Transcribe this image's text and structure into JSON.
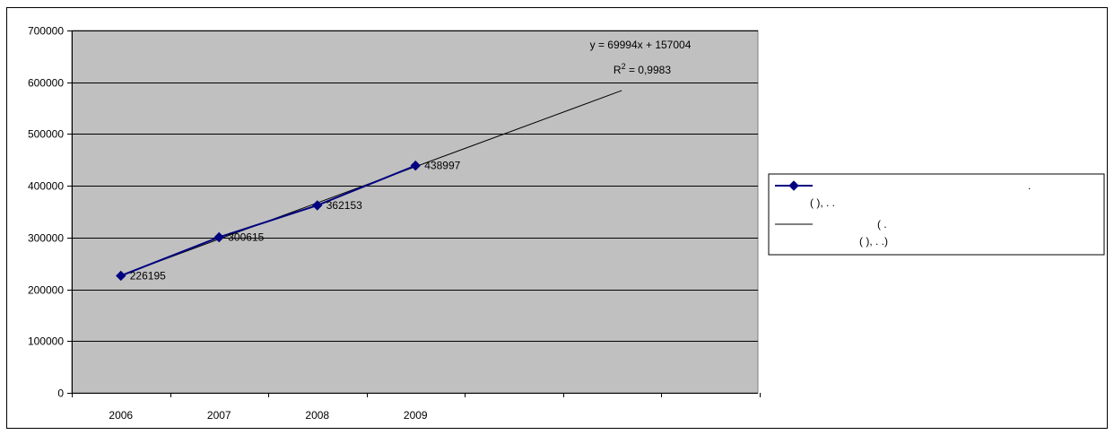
{
  "chart_data": {
    "type": "line",
    "x": [
      "2006",
      "2007",
      "2008",
      "2009"
    ],
    "series": [
      {
        "values": [
          226195,
          300615,
          362153,
          438997
        ],
        "color": "#000080",
        "marker": "diamond"
      }
    ],
    "trendline": {
      "kind": "linear",
      "equation_label": "y = 69994x + 157004",
      "r2_prefix": "R",
      "r2_exp": "2",
      "r2_value": " = 0,9983",
      "color": "#000000"
    },
    "y_ticks": [
      "0",
      "100000",
      "200000",
      "300000",
      "400000",
      "500000",
      "600000",
      "700000"
    ],
    "ylim": [
      0,
      700000
    ],
    "legend": {
      "placement": "right",
      "entry1_line1": ".",
      "entry1_line2": "(                                ),        .      .",
      "entry2_line1": "(                                                            .",
      "entry2_line2": "(                                ),        .      .)"
    },
    "colors": {
      "plot_area": "#c0c0c0",
      "grid": "#000000"
    },
    "grid": true
  }
}
